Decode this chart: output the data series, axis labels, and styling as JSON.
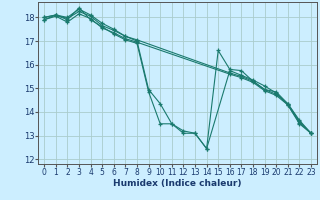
{
  "title": "",
  "xlabel": "Humidex (Indice chaleur)",
  "bg_color": "#cceeff",
  "grid_color": "#aacccc",
  "line_color": "#1a7a6e",
  "xlim": [
    -0.5,
    23.5
  ],
  "ylim": [
    11.8,
    18.65
  ],
  "xticks": [
    0,
    1,
    2,
    3,
    4,
    5,
    6,
    7,
    8,
    9,
    10,
    11,
    12,
    13,
    14,
    15,
    16,
    17,
    18,
    19,
    20,
    21,
    22,
    23
  ],
  "yticks": [
    12,
    13,
    14,
    15,
    16,
    17,
    18
  ],
  "lines": [
    {
      "x": [
        0,
        1,
        2,
        3,
        4,
        5,
        6,
        7,
        8,
        9,
        10,
        11,
        12,
        13,
        14,
        15,
        16,
        17,
        18,
        19,
        20,
        21,
        22,
        23
      ],
      "y": [
        18.0,
        18.1,
        18.0,
        18.35,
        18.1,
        17.75,
        17.5,
        17.2,
        17.0,
        14.95,
        14.35,
        13.5,
        13.1,
        13.1,
        12.45,
        16.6,
        15.8,
        15.75,
        15.3,
        14.95,
        14.85,
        14.35,
        13.65,
        13.1
      ]
    },
    {
      "x": [
        0,
        1,
        2,
        3,
        4,
        5,
        6,
        7,
        8,
        9,
        10,
        11,
        12,
        13,
        14,
        16,
        17,
        18,
        19,
        20,
        21,
        22,
        23
      ],
      "y": [
        17.9,
        18.1,
        17.9,
        18.4,
        17.9,
        17.6,
        17.3,
        17.05,
        16.9,
        14.85,
        13.5,
        13.5,
        13.2,
        13.1,
        12.45,
        15.75,
        15.55,
        15.35,
        15.1,
        14.8,
        14.3,
        13.55,
        13.1
      ]
    },
    {
      "x": [
        0,
        1,
        2,
        3,
        4,
        5,
        6,
        7,
        8,
        16,
        17,
        18,
        19,
        20,
        21,
        22,
        23
      ],
      "y": [
        18.0,
        18.1,
        17.95,
        18.25,
        18.05,
        17.65,
        17.45,
        17.2,
        17.05,
        15.65,
        15.5,
        15.3,
        14.95,
        14.75,
        14.35,
        13.6,
        13.1
      ]
    },
    {
      "x": [
        0,
        1,
        2,
        3,
        4,
        5,
        6,
        7,
        8,
        16,
        17,
        18,
        19,
        20,
        21,
        22,
        23
      ],
      "y": [
        17.9,
        18.05,
        17.8,
        18.15,
        17.95,
        17.55,
        17.35,
        17.1,
        16.95,
        15.6,
        15.45,
        15.25,
        14.9,
        14.7,
        14.3,
        13.5,
        13.1
      ]
    }
  ]
}
